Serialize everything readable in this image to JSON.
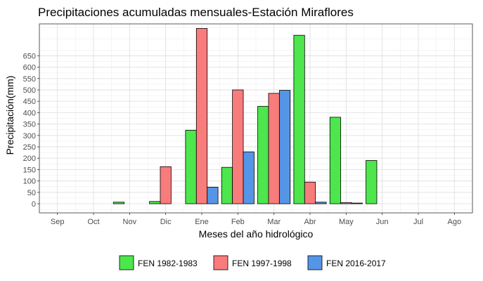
{
  "chart_data": {
    "type": "bar",
    "title": "Precipitaciones acumuladas mensuales-Estación Miraflores",
    "xlabel": "Meses del año hidrológico",
    "ylabel": "Precipitación(mm)",
    "categories": [
      "Sep",
      "Oct",
      "Nov",
      "Dic",
      "Ene",
      "Feb",
      "Mar",
      "Abr",
      "May",
      "Jun",
      "Jul",
      "Ago"
    ],
    "yticks": [
      "0",
      "50",
      "100",
      "150",
      "200",
      "250",
      "300",
      "350",
      "400",
      "450",
      "500",
      "550",
      "600",
      "650"
    ],
    "ylim": [
      -40,
      790
    ],
    "grid": true,
    "legend_position": "bottom",
    "series": [
      {
        "name": "FEN 1982-1983",
        "color": "#4de64d",
        "values": [
          0,
          0,
          7,
          10,
          323,
          160,
          428,
          740,
          380,
          190,
          0,
          0
        ]
      },
      {
        "name": "FEN 1997-1998",
        "color": "#f87c7c",
        "values": [
          0,
          0,
          0,
          163,
          770,
          500,
          485,
          95,
          5,
          0,
          0,
          0
        ]
      },
      {
        "name": "FEN 2016-2017",
        "color": "#5595e6",
        "values": [
          0,
          0,
          0,
          0,
          73,
          228,
          498,
          7,
          3,
          0,
          0,
          0
        ]
      }
    ]
  }
}
